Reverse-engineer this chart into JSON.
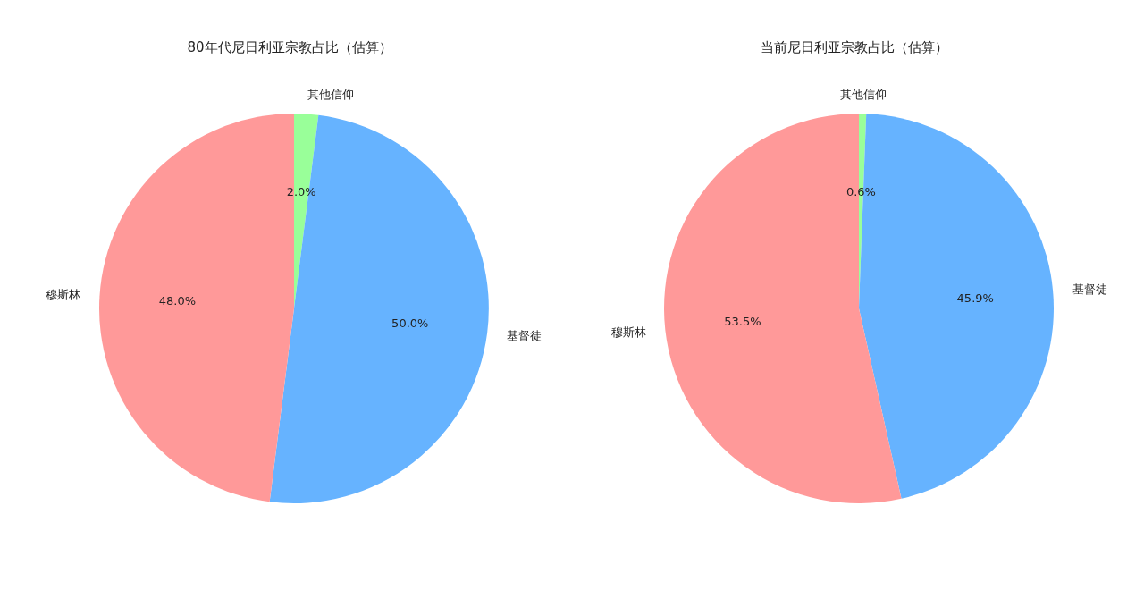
{
  "chart_data": [
    {
      "type": "pie",
      "title": "80年代尼日利亚宗教占比（估算）",
      "categories": [
        "其他信仰",
        "基督徒",
        "穆斯林"
      ],
      "values": [
        2.0,
        50.0,
        48.0
      ],
      "colors": [
        "#99ff99",
        "#66b3ff",
        "#ff9999"
      ],
      "value_labels": [
        "2.0%",
        "50.0%",
        "48.0%"
      ]
    },
    {
      "type": "pie",
      "title": "当前尼日利亚宗教占比（估算）",
      "categories": [
        "其他信仰",
        "基督徒",
        "穆斯林"
      ],
      "values": [
        0.6,
        45.9,
        53.5
      ],
      "colors": [
        "#99ff99",
        "#66b3ff",
        "#ff9999"
      ],
      "value_labels": [
        "0.6%",
        "45.9%",
        "53.5%"
      ]
    }
  ]
}
